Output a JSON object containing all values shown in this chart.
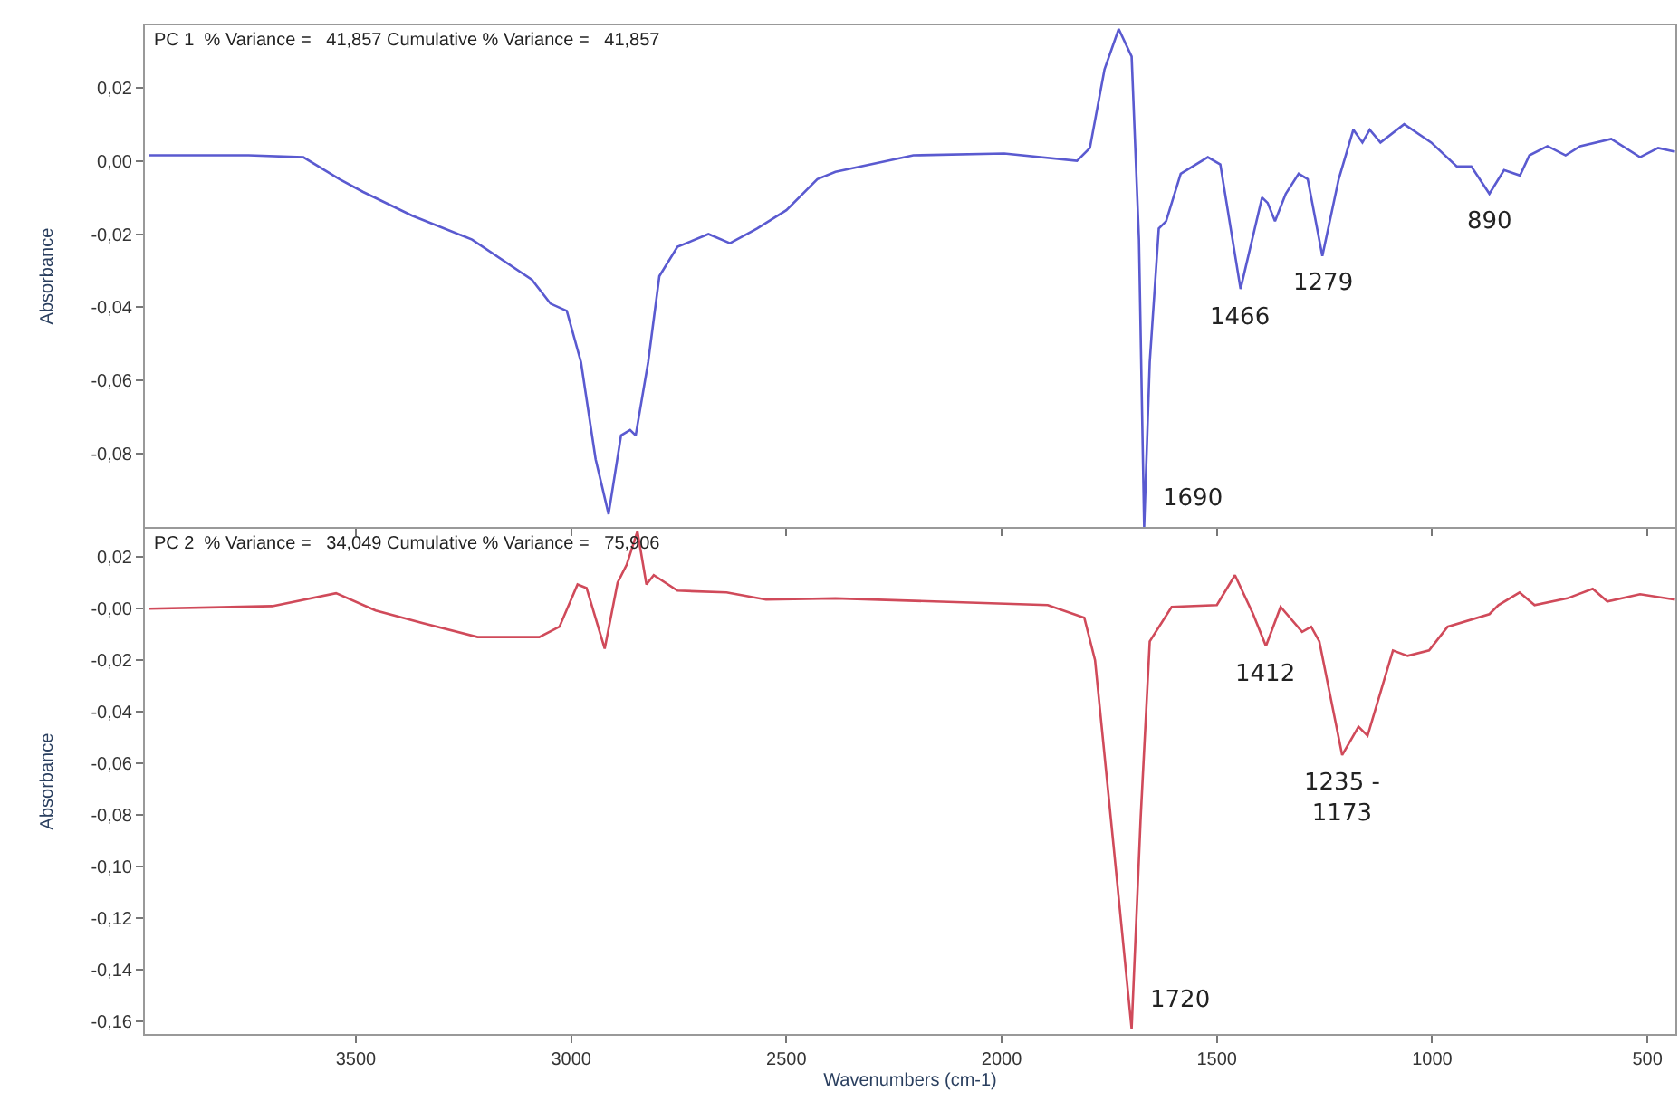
{
  "chart_data": [
    {
      "type": "line",
      "title": "PC 1  % Variance =   41,857 Cumulative % Variance =   41,857",
      "ylabel": "Absorbance",
      "xlim": [
        3990,
        435
      ],
      "xticks": [
        3500,
        3000,
        2500,
        2000,
        1500,
        1000,
        500
      ],
      "tick_labels": "y",
      "ylim": [
        -0.1,
        0.037
      ],
      "yticks": [
        {
          "value": 0.02,
          "label": "0,02"
        },
        {
          "value": 0.0,
          "label": "0,00"
        },
        {
          "value": -0.02,
          "label": "-0,02"
        },
        {
          "value": -0.04,
          "label": "-0,04"
        },
        {
          "value": -0.06,
          "label": "-0,06"
        },
        {
          "value": -0.08,
          "label": "-0,08"
        }
      ],
      "grid": false,
      "marker": "none",
      "line_style": "solid",
      "series": [
        {
          "color": "#5a5ad0",
          "x": [
            3981,
            3749,
            3622,
            3538,
            3483,
            3369,
            3230,
            3091,
            3048,
            3010,
            2977,
            2943,
            2913,
            2884,
            2863,
            2850,
            2821,
            2795,
            2753,
            2681,
            2631,
            2568,
            2500,
            2428,
            2386,
            2205,
            1994,
            1825,
            1795,
            1761,
            1728,
            1698,
            1681,
            1669,
            1656,
            1635,
            1618,
            1584,
            1521,
            1492,
            1445,
            1395,
            1382,
            1365,
            1340,
            1310,
            1289,
            1255,
            1217,
            1183,
            1162,
            1145,
            1120,
            1065,
            1002,
            943,
            909,
            867,
            833,
            796,
            774,
            732,
            690,
            656,
            584,
            517,
            475,
            436
          ],
          "values": [
            0.0015,
            0.0015,
            0.001,
            -0.005,
            -0.0085,
            -0.015,
            -0.0215,
            -0.0325,
            -0.039,
            -0.041,
            -0.055,
            -0.0815,
            -0.0965,
            -0.075,
            -0.0735,
            -0.075,
            -0.055,
            -0.0315,
            -0.0235,
            -0.02,
            -0.0225,
            -0.0185,
            -0.0135,
            -0.005,
            -0.003,
            0.0015,
            0.002,
            0.0,
            0.0035,
            0.025,
            0.036,
            0.0285,
            -0.0215,
            -0.1,
            -0.055,
            -0.0185,
            -0.0165,
            -0.0035,
            0.001,
            -0.001,
            -0.035,
            -0.01,
            -0.0115,
            -0.0165,
            -0.009,
            -0.0035,
            -0.005,
            -0.026,
            -0.005,
            0.0085,
            0.005,
            0.0085,
            0.005,
            0.01,
            0.005,
            -0.0015,
            -0.0015,
            -0.009,
            -0.0025,
            -0.004,
            0.0015,
            0.004,
            0.0015,
            0.004,
            0.006,
            0.001,
            0.0035,
            0.0025
          ]
        }
      ],
      "annotations": [
        {
          "text": "1690",
          "x": 1669,
          "y": -0.1
        },
        {
          "text": "1466",
          "x": 1445,
          "y": -0.035
        },
        {
          "text": "1279",
          "x": 1255,
          "y": -0.026
        },
        {
          "text": "890",
          "x": 867,
          "y": -0.009
        }
      ]
    },
    {
      "type": "line",
      "title": "PC 2  % Variance =   34,049 Cumulative % Variance =   75,906",
      "ylabel": "Absorbance",
      "xlabel": "Wavenumbers (cm-1)",
      "xlim": [
        3990,
        435
      ],
      "xticks": [
        3500,
        3000,
        2500,
        2000,
        1500,
        1000,
        500
      ],
      "ylim": [
        -0.165,
        0.031
      ],
      "yticks": [
        {
          "value": 0.02,
          "label": "0,02"
        },
        {
          "value": 0.0,
          "label": "-0,00"
        },
        {
          "value": -0.02,
          "label": "-0,02"
        },
        {
          "value": -0.04,
          "label": "-0,04"
        },
        {
          "value": -0.06,
          "label": "-0,06"
        },
        {
          "value": -0.08,
          "label": "-0,08"
        },
        {
          "value": -0.1,
          "label": "-0,10"
        },
        {
          "value": -0.12,
          "label": "-0,12"
        },
        {
          "value": -0.14,
          "label": "-0,14"
        },
        {
          "value": -0.16,
          "label": "-0,16"
        }
      ],
      "grid": false,
      "marker": "none",
      "line_style": "solid",
      "series": [
        {
          "color": "#d04a5a",
          "x": [
            3981,
            3694,
            3546,
            3454,
            3344,
            3217,
            3074,
            3027,
            2985,
            2964,
            2922,
            2892,
            2871,
            2846,
            2825,
            2808,
            2753,
            2639,
            2547,
            2386,
            1893,
            1808,
            1783,
            1740,
            1698,
            1677,
            1656,
            1605,
            1500,
            1458,
            1416,
            1386,
            1352,
            1302,
            1281,
            1262,
            1209,
            1171,
            1150,
            1091,
            1057,
            1007,
            964,
            867,
            846,
            797,
            762,
            686,
            627,
            593,
            517,
            436
          ],
          "values": [
            0.0,
            0.001,
            0.006,
            -0.0007,
            -0.0056,
            -0.011,
            -0.011,
            -0.007,
            0.0094,
            0.008,
            -0.0155,
            0.0101,
            0.017,
            0.03,
            0.0094,
            0.013,
            0.007,
            0.0063,
            0.0035,
            0.004,
            0.0014,
            -0.0035,
            -0.02,
            -0.092,
            -0.163,
            -0.081,
            -0.0127,
            0.0007,
            0.0014,
            0.013,
            -0.002,
            -0.0145,
            0.0007,
            -0.009,
            -0.007,
            -0.0127,
            -0.0568,
            -0.0458,
            -0.0493,
            -0.0162,
            -0.0183,
            -0.0162,
            -0.007,
            -0.0021,
            0.0014,
            0.0063,
            0.0014,
            0.004,
            0.0077,
            0.0028,
            0.0056,
            0.0035
          ]
        }
      ],
      "annotations": [
        {
          "text": "1720",
          "x": 1698,
          "y": -0.163
        },
        {
          "text": "1412",
          "x": 1386,
          "y": -0.0145
        },
        {
          "text": "1235 -\n1173",
          "x": 1209,
          "y": -0.0568
        }
      ]
    }
  ]
}
